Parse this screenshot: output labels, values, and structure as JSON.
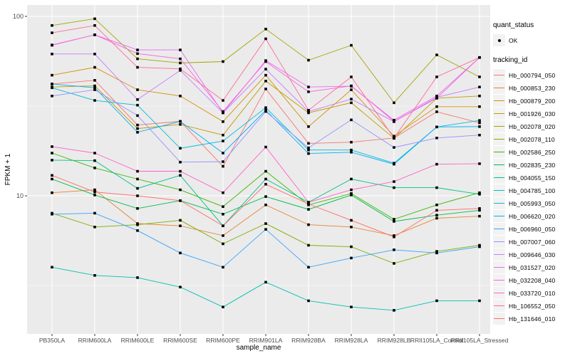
{
  "chart_data": {
    "type": "line",
    "title": "",
    "xlabel": "sample_name",
    "ylabel": "FPKM + 1",
    "yscale": "log10",
    "ylim": [
      1.7,
      116
    ],
    "y_major_ticks": [
      100,
      10
    ],
    "y_tick_labels": [
      "100",
      "10"
    ],
    "y_minor_ticks": [
      31.623,
      3.162
    ],
    "grid": true,
    "legend_position": "right",
    "point_color": "#000000",
    "categories": [
      "PB350LA",
      "RRIM600LA",
      "RRIM600LE",
      "RRIM600SE",
      "RRIM600PE",
      "RRIM901LA",
      "RRIM928BA",
      "RRIM928LA",
      "RRIM928LB",
      "RRII105LA_Control",
      "RRII105LA_Stressed"
    ],
    "series": [
      {
        "name": "Hb_000794_050",
        "color": "#F8766D",
        "values": [
          42,
          44,
          24.8,
          26,
          14.6,
          39.4,
          19.6,
          19.9,
          21,
          29.4,
          25.5
        ]
      },
      {
        "name": "Hb_000853_230",
        "color": "#EA8331",
        "values": [
          10.4,
          10.8,
          7.0,
          6.8,
          6.0,
          8.9,
          6.9,
          6.7,
          6.0,
          7.5,
          7.7
        ]
      },
      {
        "name": "Hb_000879_200",
        "color": "#D89000",
        "values": [
          47,
          52,
          39,
          36,
          25.9,
          47,
          24.3,
          39,
          21.5,
          31.4,
          31.4
        ]
      },
      {
        "name": "Hb_001926_030",
        "color": "#C09B00",
        "values": [
          40.4,
          41,
          23.7,
          25,
          21.8,
          43.6,
          29,
          33,
          20.9,
          35,
          36
        ]
      },
      {
        "name": "Hb_002078_020",
        "color": "#A3A500",
        "values": [
          89,
          97,
          58,
          55,
          56,
          85,
          57,
          69,
          33,
          61,
          46
        ]
      },
      {
        "name": "Hb_002078_110",
        "color": "#7CAE00",
        "values": [
          8.0,
          6.7,
          6.9,
          7.3,
          5.4,
          7.0,
          5.3,
          5.2,
          4.2,
          4.9,
          5.3
        ]
      },
      {
        "name": "Hb_002586_250",
        "color": "#39B600",
        "values": [
          17.3,
          14.3,
          12.4,
          10.8,
          8.7,
          13.7,
          8.9,
          10.3,
          7.4,
          8.9,
          10.4
        ]
      },
      {
        "name": "Hb_002835_230",
        "color": "#00BB4E",
        "values": [
          12.4,
          10.1,
          8.5,
          9.4,
          7.9,
          9.9,
          8.4,
          10.1,
          7.2,
          7.8,
          8.3
        ]
      },
      {
        "name": "Hb_004055_150",
        "color": "#00C087",
        "values": [
          15.8,
          15.7,
          11.0,
          13.0,
          6.8,
          12.4,
          9.2,
          12.4,
          11.1,
          11.1,
          10.2
        ]
      },
      {
        "name": "Hb_004785_100",
        "color": "#00C0B2",
        "values": [
          4.0,
          3.6,
          3.5,
          3.1,
          2.4,
          3.3,
          2.6,
          2.4,
          2.3,
          2.6,
          2.6
        ]
      },
      {
        "name": "Hb_005993_050",
        "color": "#00BCD8",
        "values": [
          40,
          34,
          32,
          18.4,
          20.2,
          31,
          18,
          18,
          15.2,
          24.2,
          26.3
        ]
      },
      {
        "name": "Hb_006620_020",
        "color": "#00B0F6",
        "values": [
          42,
          40,
          22.6,
          26,
          17.3,
          30,
          17.2,
          17.5,
          15.0,
          24.2,
          24.3
        ]
      },
      {
        "name": "Hb_006960_050",
        "color": "#35A2FF",
        "values": [
          7.9,
          8.0,
          6.4,
          4.8,
          4.0,
          6.5,
          4.0,
          4.5,
          5.0,
          4.8,
          5.2
        ]
      },
      {
        "name": "Hb_007007_060",
        "color": "#9590FF",
        "values": [
          36,
          39,
          28,
          15.4,
          15.5,
          29.5,
          18.5,
          26.5,
          18.6,
          21,
          21.8
        ]
      },
      {
        "name": "Hb_009646_030",
        "color": "#C77CFF",
        "values": [
          61.7,
          61.7,
          34.4,
          50,
          29,
          50.8,
          29.5,
          34.6,
          25.9,
          35.4,
          40.4
        ]
      },
      {
        "name": "Hb_031527_020",
        "color": "#E76BF3",
        "values": [
          69.3,
          78.9,
          65,
          65,
          29,
          56.7,
          40.4,
          40.8,
          26.4,
          36,
          59
        ]
      },
      {
        "name": "Hb_032208_040",
        "color": "#FA62DB",
        "values": [
          69,
          79,
          62,
          58,
          29.5,
          56,
          38,
          41,
          26,
          35,
          59
        ]
      },
      {
        "name": "Hb_033720_010",
        "color": "#FF61C7",
        "values": [
          18.8,
          17.3,
          13.7,
          13.7,
          10.4,
          18.7,
          9.2,
          10.8,
          12,
          15,
          15.1
        ]
      },
      {
        "name": "Hb_106552_050",
        "color": "#FF6A98",
        "values": [
          81,
          89,
          52,
          51,
          34,
          75,
          30,
          46,
          21,
          46,
          59
        ]
      },
      {
        "name": "Hb_131646_010",
        "color": "#FF6C67",
        "values": [
          13,
          10.5,
          10,
          9.4,
          6.8,
          11.6,
          9.0,
          7.3,
          5.9,
          8.3,
          8.5
        ]
      }
    ]
  },
  "legend": {
    "quant_status_title": "quant_status",
    "quant_status_items": [
      "OK"
    ],
    "tracking_id_title": "tracking_id"
  },
  "colors": {
    "panel_bg": "#EBEBEB",
    "grid": "#FFFFFF",
    "tick_label": "#4D4D4D",
    "axis_title": "#000000",
    "point": "#000000",
    "legend_key_bg": "#F2F2F2"
  }
}
